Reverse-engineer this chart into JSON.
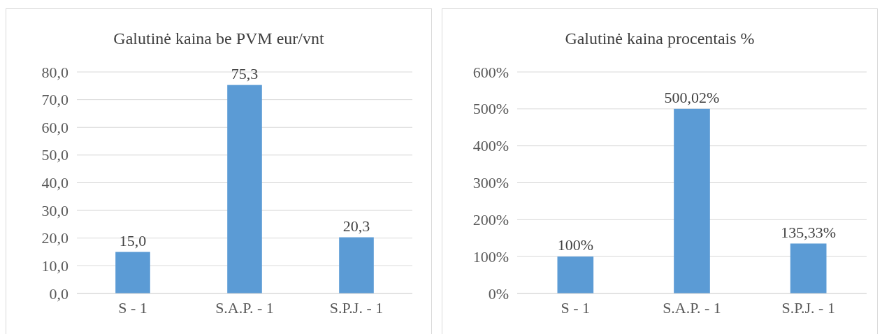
{
  "chart_data": [
    {
      "type": "bar",
      "title": "Galutinė kaina be PVM eur/vnt",
      "categories": [
        "S - 1",
        "S.A.P. - 1",
        "S.P.J. - 1"
      ],
      "values": [
        15.0,
        75.3,
        20.3
      ],
      "value_labels": [
        "15,0",
        "75,3",
        "20,3"
      ],
      "color": "#5b9bd5",
      "ylim": [
        0,
        80
      ],
      "yticks": [
        {
          "value": 0,
          "label": "0,0"
        },
        {
          "value": 10,
          "label": "10,0"
        },
        {
          "value": 20,
          "label": "20,0"
        },
        {
          "value": 30,
          "label": "30,0"
        },
        {
          "value": 40,
          "label": "40,0"
        },
        {
          "value": 50,
          "label": "50,0"
        },
        {
          "value": 60,
          "label": "60,0"
        },
        {
          "value": 70,
          "label": "70,0"
        },
        {
          "value": 80,
          "label": "80,0"
        }
      ],
      "grid": "y"
    },
    {
      "type": "bar",
      "title": "Galutinė kaina procentais %",
      "categories": [
        "S - 1",
        "S.A.P. - 1",
        "S.P.J. - 1"
      ],
      "values": [
        100,
        500.02,
        135.33
      ],
      "value_labels": [
        "100%",
        "500,02%",
        "135,33%"
      ],
      "color": "#5b9bd5",
      "ylim": [
        0,
        600
      ],
      "yticks": [
        {
          "value": 0,
          "label": "0%"
        },
        {
          "value": 100,
          "label": "100%"
        },
        {
          "value": 200,
          "label": "200%"
        },
        {
          "value": 300,
          "label": "300%"
        },
        {
          "value": 400,
          "label": "400%"
        },
        {
          "value": 500,
          "label": "500%"
        },
        {
          "value": 600,
          "label": "600%"
        }
      ],
      "grid": "y"
    }
  ]
}
